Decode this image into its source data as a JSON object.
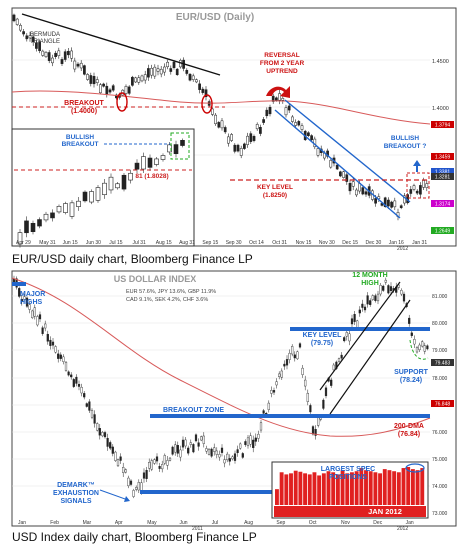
{
  "chart_data": [
    {
      "type": "candlestick",
      "title": "EUR/USD (Daily)",
      "caption": "EUR/USD daily chart, Bloomberg Finance LP",
      "x_ticks": [
        "Apr 29",
        "May 31",
        "Jun 15",
        "Jun 30",
        "Jul 15",
        "Jul 31",
        "Aug 15",
        "Aug 31",
        "Sep 15",
        "Sep 30",
        "Oct 14",
        "Oct 31",
        "Nov 15",
        "Nov 30",
        "Dec 15",
        "Dec 30",
        "Jan 16",
        "Jan 31"
      ],
      "x_year_label": "2012",
      "y_ticks": [
        "1.4500",
        "1.4000"
      ],
      "y_range_approx": [
        1.26,
        1.5
      ],
      "price_labels": [
        {
          "text": "1.3794",
          "color": "#cc0000"
        },
        {
          "text": "1.3459",
          "color": "#cc0000"
        },
        {
          "text": "1.3381",
          "color": "#2255cc"
        },
        {
          "text": "1.3281",
          "color": "#333333"
        },
        {
          "text": "1.3174",
          "color": "#cc00cc"
        },
        {
          "text": "1.2649",
          "color": "#22aa22"
        }
      ],
      "annotations": {
        "bermuda": "BERMUDA\nTRIANGLE",
        "reversal": "REVERSAL\nFROM 2 YEAR\nUPTREND",
        "breakout_1": "BREAKOUT\n(1.4000)",
        "bullish_breakout_right": "BULLISH\nBREAKOUT ?",
        "key_level": "KEY LEVEL\n(1.8250)"
      },
      "inset": {
        "annotation": "BULLISH\nBREAKOUT",
        "level": "81 (1.8028)"
      }
    },
    {
      "type": "candlestick",
      "title": "US DOLLAR INDEX",
      "caption": "USD Index daily chart, Bloomberg Finance LP",
      "composition": [
        "EUR 57.6%, JPY 13.6%, GBP 11.9%",
        "CAD 9.1%, SEK 4.2%, CHF 3.6%"
      ],
      "x_ticks": [
        "Jan",
        "Feb",
        "Mar",
        "Apr",
        "May",
        "Jun",
        "Jul",
        "Aug",
        "Sep",
        "Oct",
        "Nov",
        "Dec",
        "Jan"
      ],
      "x_year_labels": [
        "2011",
        "2012"
      ],
      "y_ticks": [
        "81.000",
        "80.000",
        "79.000",
        "78.000",
        "77.000",
        "76.000",
        "75.000",
        "74.000",
        "73.000"
      ],
      "y_range_approx": [
        72.8,
        81.6
      ],
      "price_labels": [
        {
          "text": "79.483",
          "color": "#333333"
        },
        {
          "text": "76.848",
          "color": "#cc0000"
        }
      ],
      "annotations": {
        "major_highs": "MAJOR\nHIGHS",
        "twelve_month_high": "12 MONTH\nHIGH",
        "key_level": "KEY LEVEL\n(79.75)",
        "support": "SUPPORT\n(78.24)",
        "breakout_zone": "BREAKOUT ZONE",
        "dma": "200-DMA\n(76.84)",
        "demark": "DEMARK™\nEXHAUSTION\nSIGNALS"
      },
      "inset": {
        "title": "LARGEST SPEC\nPOSITIONS",
        "label": "JAN 2012",
        "values": [
          30,
          62,
          58,
          60,
          65,
          63,
          60,
          58,
          62,
          56,
          60,
          64,
          62,
          58,
          66,
          60,
          62,
          64,
          70,
          66,
          64,
          62,
          60,
          68,
          66,
          64,
          62,
          70,
          72,
          68,
          66,
          70
        ]
      }
    }
  ]
}
